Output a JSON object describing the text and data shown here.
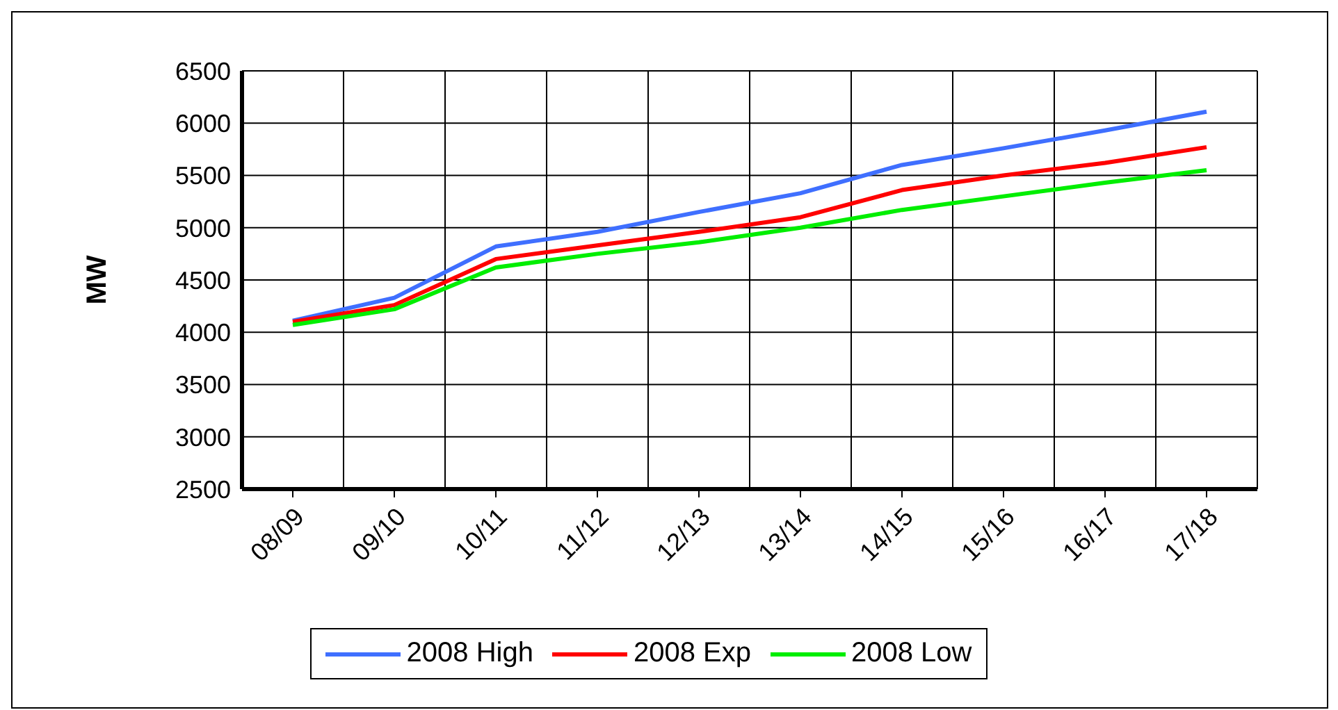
{
  "chart_data": {
    "type": "line",
    "ylabel": "MW",
    "categories": [
      "08/09",
      "09/10",
      "10/11",
      "11/12",
      "12/13",
      "13/14",
      "14/15",
      "15/16",
      "16/17",
      "17/18"
    ],
    "series": [
      {
        "name": "2008 High",
        "color": "#3f6fff",
        "values": [
          4110,
          4330,
          4820,
          4960,
          5150,
          5330,
          5600,
          5760,
          5930,
          6110
        ]
      },
      {
        "name": "2008 Exp",
        "color": "#ff0000",
        "values": [
          4100,
          4260,
          4700,
          4830,
          4960,
          5100,
          5360,
          5500,
          5620,
          5770
        ]
      },
      {
        "name": "2008 Low",
        "color": "#00ee00",
        "values": [
          4070,
          4220,
          4620,
          4750,
          4860,
          5000,
          5170,
          5300,
          5430,
          5550
        ]
      }
    ],
    "ylim": [
      2500,
      6500
    ],
    "yticks": [
      2500,
      3000,
      3500,
      4000,
      4500,
      5000,
      5500,
      6000,
      6500
    ],
    "grid": true,
    "legend": "bottom",
    "marker": "none",
    "line_style": "solid"
  }
}
